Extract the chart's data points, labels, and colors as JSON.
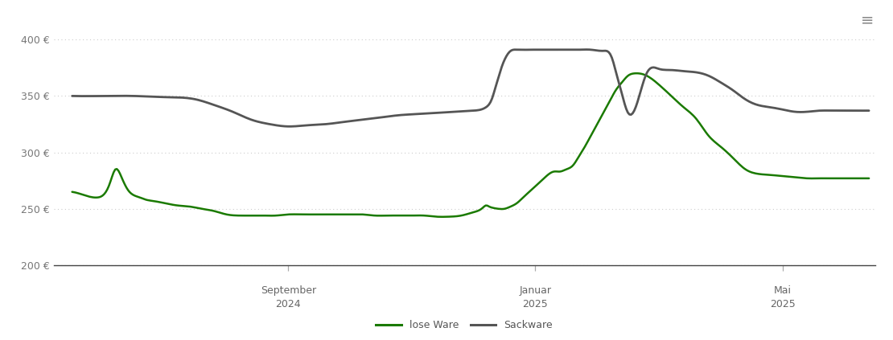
{
  "ylim": [
    200,
    420
  ],
  "yticks": [
    200,
    250,
    300,
    350,
    400
  ],
  "ytick_labels": [
    "200 €",
    "250 €",
    "300 €",
    "350 €",
    "400 €"
  ],
  "background_color": "#ffffff",
  "grid_color": "#cccccc",
  "line_color_lose": "#1a7a00",
  "line_color_sack": "#555555",
  "legend_labels": [
    "lose Ware",
    "Sackware"
  ],
  "xlim": [
    -0.3,
    13.0
  ],
  "x_tick_pos": [
    3.5,
    7.5,
    11.5
  ],
  "x_tick_top": [
    "September",
    "Januar",
    "Mai"
  ],
  "x_tick_bot": [
    "2024",
    "2025",
    "2025"
  ],
  "lose_x": [
    0.0,
    0.2,
    0.4,
    0.5,
    0.6,
    0.65,
    0.7,
    0.8,
    0.9,
    1.0,
    1.1,
    1.2,
    1.3,
    1.5,
    1.7,
    1.9,
    2.1,
    2.3,
    2.5,
    2.7,
    2.9,
    3.1,
    3.3,
    3.5,
    3.7,
    3.9,
    4.1,
    4.3,
    4.5,
    4.7,
    4.9,
    5.1,
    5.3,
    5.5,
    5.7,
    5.9,
    6.1,
    6.3,
    6.5,
    6.6,
    6.65,
    6.7,
    6.75,
    6.8,
    6.9,
    7.0,
    7.1,
    7.2,
    7.3,
    7.4,
    7.5,
    7.6,
    7.7,
    7.8,
    7.9,
    8.0,
    8.1,
    8.2,
    8.3,
    8.4,
    8.5,
    8.6,
    8.7,
    8.8,
    8.9,
    9.0,
    9.1,
    9.3,
    9.5,
    9.7,
    9.9,
    10.1,
    10.3,
    10.5,
    10.7,
    10.9,
    11.1,
    11.3,
    11.5,
    11.7,
    11.9,
    12.1,
    12.3,
    12.5,
    12.7,
    12.9
  ],
  "lose_y": [
    265,
    262,
    260,
    262,
    271,
    279,
    285,
    278,
    267,
    262,
    260,
    258,
    257,
    255,
    253,
    252,
    250,
    248,
    245,
    244,
    244,
    244,
    244,
    245,
    245,
    245,
    245,
    245,
    245,
    245,
    244,
    244,
    244,
    244,
    244,
    243,
    243,
    244,
    247,
    249,
    251,
    253,
    252,
    251,
    250,
    250,
    252,
    255,
    260,
    265,
    270,
    275,
    280,
    283,
    283,
    285,
    288,
    296,
    305,
    315,
    325,
    335,
    345,
    355,
    362,
    368,
    370,
    368,
    360,
    350,
    340,
    330,
    315,
    305,
    295,
    285,
    281,
    280,
    279,
    278,
    277,
    277,
    277,
    277,
    277,
    277
  ],
  "sack_x": [
    0.0,
    0.5,
    1.0,
    1.5,
    2.0,
    2.3,
    2.6,
    2.9,
    3.2,
    3.5,
    3.8,
    4.1,
    4.4,
    4.7,
    5.0,
    5.3,
    5.6,
    5.9,
    6.2,
    6.5,
    6.7,
    6.8,
    6.85,
    6.9,
    6.95,
    7.0,
    7.05,
    7.1,
    7.2,
    7.4,
    7.6,
    7.7,
    7.75,
    7.8,
    7.85,
    7.9,
    8.0,
    8.2,
    8.4,
    8.6,
    8.7,
    8.75,
    8.8,
    8.85,
    8.9,
    8.95,
    9.0,
    9.1,
    9.3,
    9.5,
    9.7,
    9.9,
    10.1,
    10.3,
    10.5,
    10.7,
    10.9,
    11.1,
    11.3,
    11.5,
    11.7,
    11.9,
    12.1,
    12.3,
    12.5,
    12.7,
    12.9
  ],
  "sack_y": [
    350,
    350,
    350,
    349,
    347,
    342,
    336,
    329,
    325,
    323,
    324,
    325,
    327,
    329,
    331,
    333,
    334,
    335,
    336,
    337,
    340,
    348,
    357,
    366,
    375,
    382,
    387,
    390,
    391,
    391,
    391,
    391,
    391,
    391,
    391,
    391,
    391,
    391,
    391,
    390,
    388,
    382,
    372,
    362,
    352,
    342,
    335,
    337,
    370,
    374,
    373,
    372,
    371,
    368,
    362,
    355,
    347,
    342,
    340,
    338,
    336,
    336,
    337,
    337,
    337,
    337,
    337
  ]
}
